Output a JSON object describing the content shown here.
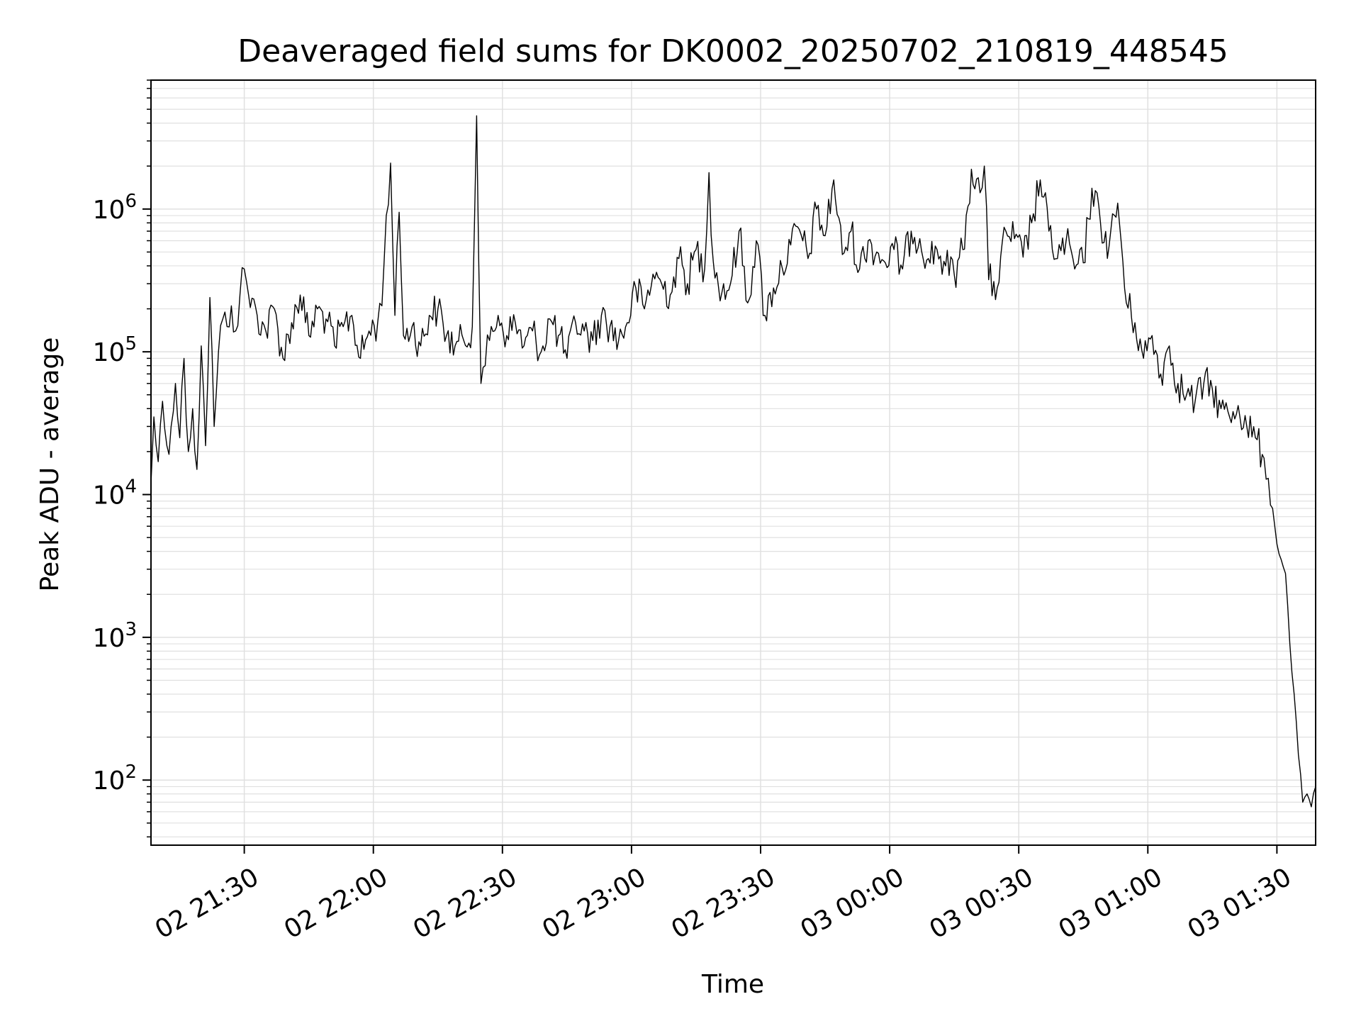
{
  "chart_data": {
    "type": "line",
    "title": "Deaveraged field sums for DK0002_20250702_210819_448545",
    "xlabel": "Time",
    "ylabel": "Peak ADU - average",
    "yscale": "log",
    "xlim": [
      "2025-07-02 21:08:19",
      "2025-07-03 01:39:00"
    ],
    "ylim": [
      35,
      8000000
    ],
    "grid": true,
    "line_color": "#000000",
    "grid_color": "#e0e0e0",
    "x_ticks": [
      {
        "label": "02 21:30",
        "value": "2025-07-02 21:30"
      },
      {
        "label": "02 22:00",
        "value": "2025-07-02 22:00"
      },
      {
        "label": "02 22:30",
        "value": "2025-07-02 22:30"
      },
      {
        "label": "02 23:00",
        "value": "2025-07-02 23:00"
      },
      {
        "label": "02 23:30",
        "value": "2025-07-02 23:30"
      },
      {
        "label": "03 00:00",
        "value": "2025-07-03 00:00"
      },
      {
        "label": "03 00:30",
        "value": "2025-07-03 00:30"
      },
      {
        "label": "03 01:00",
        "value": "2025-07-03 01:00"
      },
      {
        "label": "03 01:30",
        "value": "2025-07-03 01:30"
      }
    ],
    "y_ticks": [
      {
        "base": "10",
        "exp": "2",
        "value": 100
      },
      {
        "base": "10",
        "exp": "3",
        "value": 1000
      },
      {
        "base": "10",
        "exp": "4",
        "value": 10000
      },
      {
        "base": "10",
        "exp": "5",
        "value": 100000
      },
      {
        "base": "10",
        "exp": "6",
        "value": 1000000
      }
    ],
    "series": [
      {
        "x": [
          "2025-07-02 21:08:19",
          "2025-07-02 21:09",
          "2025-07-02 21:10",
          "2025-07-02 21:11",
          "2025-07-02 21:12",
          "2025-07-02 21:13",
          "2025-07-02 21:14",
          "2025-07-02 21:15",
          "2025-07-02 21:16",
          "2025-07-02 21:17",
          "2025-07-02 21:18",
          "2025-07-02 21:19",
          "2025-07-02 21:20",
          "2025-07-02 21:21",
          "2025-07-02 21:22",
          "2025-07-02 21:23",
          "2025-07-02 21:24",
          "2025-07-02 21:25",
          "2025-07-02 21:26",
          "2025-07-02 21:27",
          "2025-07-02 21:28",
          "2025-07-02 21:29",
          "2025-07-02 21:30",
          "2025-07-02 21:31",
          "2025-07-02 21:33",
          "2025-07-02 21:35",
          "2025-07-02 21:37",
          "2025-07-02 21:39",
          "2025-07-02 21:41",
          "2025-07-02 21:43",
          "2025-07-02 21:45",
          "2025-07-02 21:47",
          "2025-07-02 21:49",
          "2025-07-02 21:51",
          "2025-07-02 21:53",
          "2025-07-02 21:55",
          "2025-07-02 21:57",
          "2025-07-02 21:59",
          "2025-07-02 22:01",
          "2025-07-02 22:02",
          "2025-07-02 22:03",
          "2025-07-02 22:04",
          "2025-07-02 22:05",
          "2025-07-02 22:06",
          "2025-07-02 22:07",
          "2025-07-02 22:09",
          "2025-07-02 22:11",
          "2025-07-02 22:13",
          "2025-07-02 22:15",
          "2025-07-02 22:17",
          "2025-07-02 22:19",
          "2025-07-02 22:21",
          "2025-07-02 22:23",
          "2025-07-02 22:24",
          "2025-07-02 22:25",
          "2025-07-02 22:26",
          "2025-07-02 22:27",
          "2025-07-02 22:29",
          "2025-07-02 22:31",
          "2025-07-02 22:33",
          "2025-07-02 22:35",
          "2025-07-02 22:37",
          "2025-07-02 22:39",
          "2025-07-02 22:41",
          "2025-07-02 22:43",
          "2025-07-02 22:45",
          "2025-07-02 22:47",
          "2025-07-02 22:49",
          "2025-07-02 22:51",
          "2025-07-02 22:53",
          "2025-07-02 22:55",
          "2025-07-02 22:57",
          "2025-07-02 22:59",
          "2025-07-02 23:01",
          "2025-07-02 23:03",
          "2025-07-02 23:05",
          "2025-07-02 23:07",
          "2025-07-02 23:09",
          "2025-07-02 23:11",
          "2025-07-02 23:13",
          "2025-07-02 23:15",
          "2025-07-02 23:17",
          "2025-07-02 23:18",
          "2025-07-02 23:19",
          "2025-07-02 23:21",
          "2025-07-02 23:23",
          "2025-07-02 23:25",
          "2025-07-02 23:27",
          "2025-07-02 23:29",
          "2025-07-02 23:31",
          "2025-07-02 23:33",
          "2025-07-02 23:35",
          "2025-07-02 23:37",
          "2025-07-02 23:39",
          "2025-07-02 23:41",
          "2025-07-02 23:43",
          "2025-07-02 23:45",
          "2025-07-02 23:47",
          "2025-07-02 23:49",
          "2025-07-02 23:51",
          "2025-07-02 23:53",
          "2025-07-02 23:55",
          "2025-07-02 23:57",
          "2025-07-02 23:59",
          "2025-07-03 00:01",
          "2025-07-03 00:03",
          "2025-07-03 00:05",
          "2025-07-03 00:07",
          "2025-07-03 00:09",
          "2025-07-03 00:11",
          "2025-07-03 00:13",
          "2025-07-03 00:15",
          "2025-07-03 00:17",
          "2025-07-03 00:19",
          "2025-07-03 00:21",
          "2025-07-03 00:22",
          "2025-07-03 00:23",
          "2025-07-03 00:25",
          "2025-07-03 00:27",
          "2025-07-03 00:29",
          "2025-07-03 00:31",
          "2025-07-03 00:33",
          "2025-07-03 00:35",
          "2025-07-03 00:37",
          "2025-07-03 00:39",
          "2025-07-03 00:41",
          "2025-07-03 00:43",
          "2025-07-03 00:45",
          "2025-07-03 00:47",
          "2025-07-03 00:49",
          "2025-07-03 00:51",
          "2025-07-03 00:53",
          "2025-07-03 00:55",
          "2025-07-03 00:57",
          "2025-07-03 00:59",
          "2025-07-03 01:01",
          "2025-07-03 01:03",
          "2025-07-03 01:05",
          "2025-07-03 01:07",
          "2025-07-03 01:09",
          "2025-07-03 01:11",
          "2025-07-03 01:13",
          "2025-07-03 01:15",
          "2025-07-03 01:17",
          "2025-07-03 01:19",
          "2025-07-03 01:21",
          "2025-07-03 01:23",
          "2025-07-03 01:25",
          "2025-07-03 01:27",
          "2025-07-03 01:28",
          "2025-07-03 01:29",
          "2025-07-03 01:30",
          "2025-07-03 01:31",
          "2025-07-03 01:32",
          "2025-07-03 01:33",
          "2025-07-03 01:34",
          "2025-07-03 01:35",
          "2025-07-03 01:36",
          "2025-07-03 01:37",
          "2025-07-03 01:38",
          "2025-07-03 01:39"
        ],
        "y": [
          12000,
          35000,
          17000,
          45000,
          22000,
          30000,
          60000,
          25000,
          90000,
          20000,
          40000,
          15000,
          110000,
          22000,
          240000,
          30000,
          100000,
          170000,
          150000,
          210000,
          140000,
          250000,
          380000,
          250000,
          180000,
          140000,
          200000,
          90000,
          160000,
          250000,
          130000,
          200000,
          170000,
          110000,
          150000,
          180000,
          90000,
          140000,
          160000,
          210000,
          900000,
          2100000,
          180000,
          950000,
          130000,
          150000,
          110000,
          180000,
          200000,
          130000,
          110000,
          120000,
          150000,
          4500000,
          60000,
          80000,
          120000,
          180000,
          130000,
          160000,
          110000,
          140000,
          100000,
          170000,
          130000,
          90000,
          160000,
          140000,
          120000,
          180000,
          150000,
          120000,
          160000,
          280000,
          200000,
          350000,
          300000,
          250000,
          450000,
          300000,
          520000,
          380000,
          1800000,
          430000,
          260000,
          300000,
          700000,
          220000,
          600000,
          180000,
          280000,
          390000,
          560000,
          720000,
          450000,
          1000000,
          650000,
          1600000,
          480000,
          700000,
          380000,
          600000,
          500000,
          420000,
          520000,
          380000,
          700000,
          620000,
          450000,
          520000,
          400000,
          350000,
          520000,
          1900000,
          1300000,
          2000000,
          320000,
          280000,
          700000,
          620000,
          460000,
          800000,
          1600000,
          700000,
          450000,
          600000,
          380000,
          420000,
          1400000,
          800000,
          550000,
          1100000,
          220000,
          160000,
          90000,
          130000,
          70000,
          110000,
          60000,
          50000,
          45000,
          60000,
          55000,
          40000,
          35000,
          42000,
          30000,
          25000,
          18000,
          13000,
          8000,
          4500,
          3500,
          2800,
          900,
          400,
          150,
          70,
          80,
          65,
          90
        ],
        "name": ""
      }
    ]
  }
}
